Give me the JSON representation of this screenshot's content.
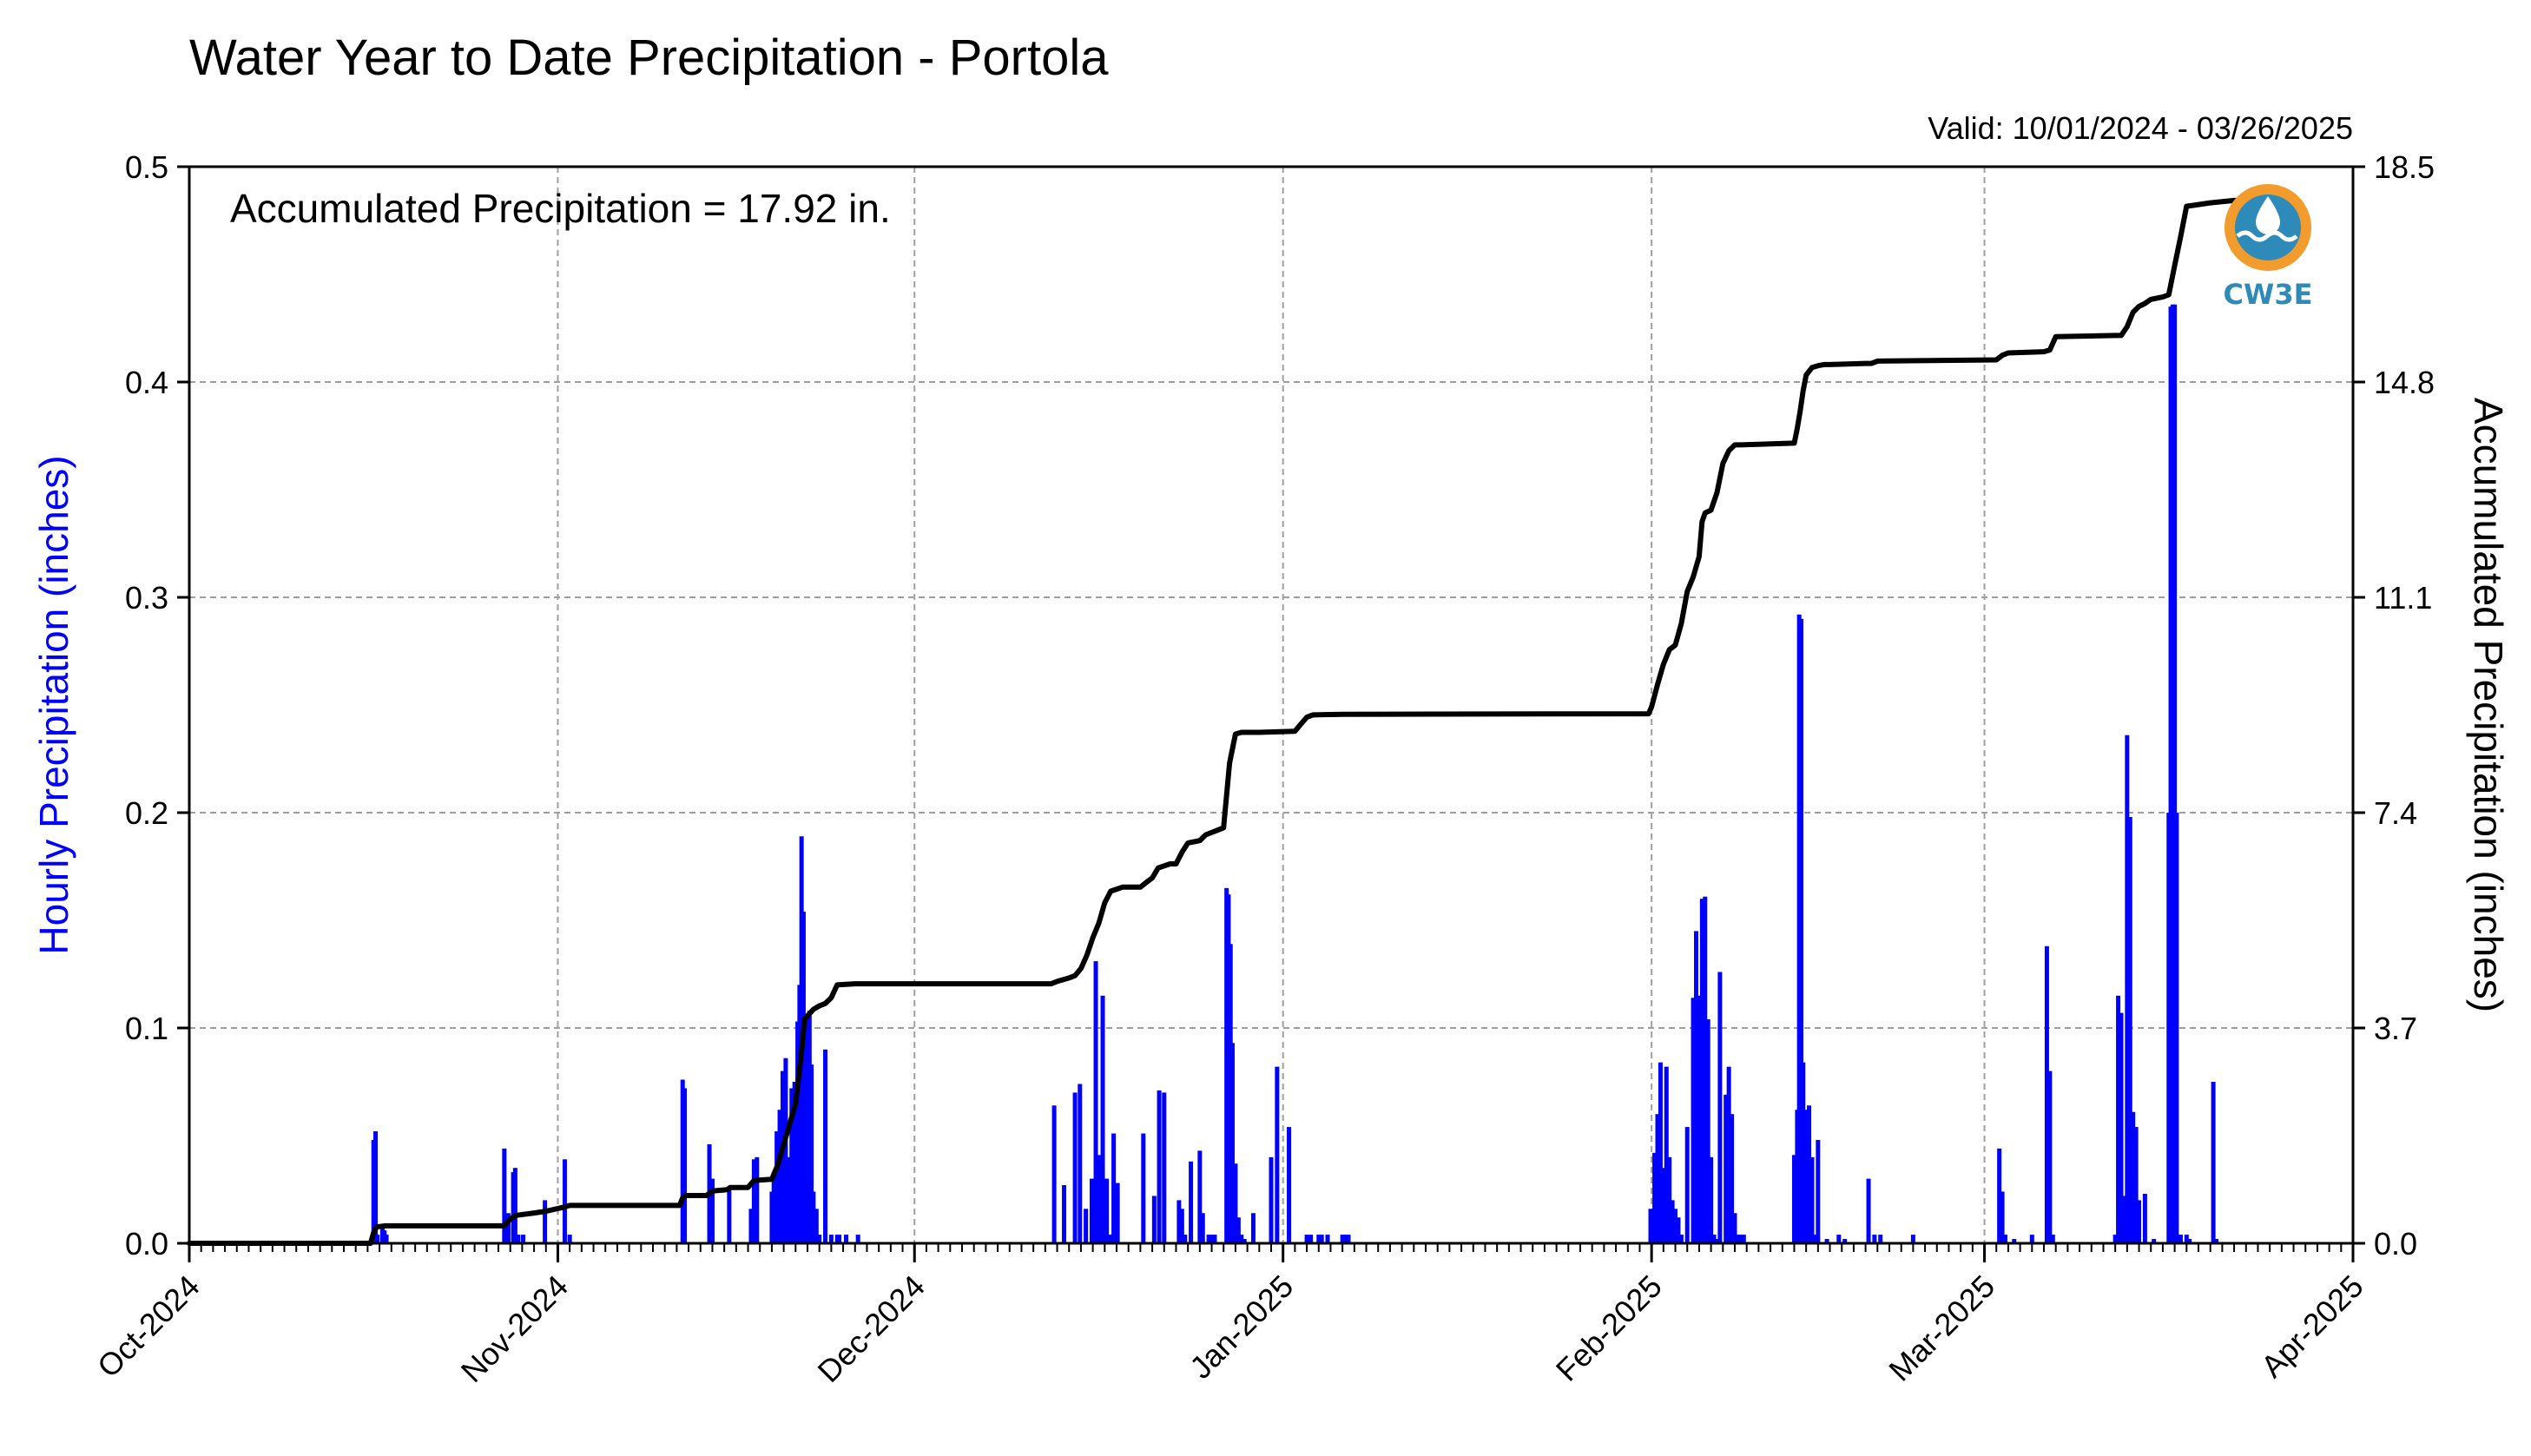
{
  "chart_data": {
    "type": "bar+line",
    "title": "Water Year to Date Precipitation - Portola",
    "valid_label": "Valid: 10/01/2024 - 03/26/2025",
    "annotation": "Accumulated Precipitation = 17.92 in.",
    "ylabel_left": "Hourly Precipitation (inches)",
    "ylabel_right": "Accumulated Precipitation (inches)",
    "ylim_left": [
      0,
      0.5
    ],
    "ylim_right": [
      0,
      18.5
    ],
    "yticks_left": [
      "0.0",
      "0.1",
      "0.2",
      "0.3",
      "0.4",
      "0.5"
    ],
    "yticks_right": [
      "0.0",
      "3.7",
      "7.4",
      "11.1",
      "14.8",
      "18.5"
    ],
    "xlim": [
      "2024-10-01",
      "2025-04-01"
    ],
    "xticks": [
      {
        "date": "2024-10-01",
        "label": "Oct-2024"
      },
      {
        "date": "2024-11-01",
        "label": "Nov-2024"
      },
      {
        "date": "2024-12-01",
        "label": "Dec-2024"
      },
      {
        "date": "2025-01-01",
        "label": "Jan-2025"
      },
      {
        "date": "2025-02-01",
        "label": "Feb-2025"
      },
      {
        "date": "2025-03-01",
        "label": "Mar-2025"
      },
      {
        "date": "2025-04-01",
        "label": "Apr-2025"
      }
    ],
    "grid": true,
    "colors": {
      "hourly": "#0000ff",
      "accumulated": "#000000",
      "left_axis_label": "#0000ff",
      "logo_orange": "#f39c2e",
      "logo_blue": "#2e8ab8"
    },
    "hourly_series": {
      "name": "Hourly Precipitation",
      "x": [
        "2024-10-16T12:00",
        "2024-10-16T16:00",
        "2024-10-16T20:00",
        "2024-10-17T06:00",
        "2024-10-17T10:00",
        "2024-10-17T14:00",
        "2024-10-27T12:00",
        "2024-10-27T20:00",
        "2024-10-28T06:00",
        "2024-10-28T10:00",
        "2024-10-28T16:00",
        "2024-10-29T02:00",
        "2024-10-30T22:00",
        "2024-11-01T14:00",
        "2024-11-02T00:00",
        "2024-11-11T12:00",
        "2024-11-11T16:00",
        "2024-11-13T18:00",
        "2024-11-14T00:00",
        "2024-11-15T10:00",
        "2024-11-17T06:00",
        "2024-11-17T12:00",
        "2024-11-17T18:00",
        "2024-11-19T00:00",
        "2024-11-19T04:00",
        "2024-11-19T10:00",
        "2024-11-19T16:00",
        "2024-11-19T22:00",
        "2024-11-20T04:00",
        "2024-11-20T10:00",
        "2024-11-20T16:00",
        "2024-11-20T22:00",
        "2024-11-21T04:00",
        "2024-11-21T08:00",
        "2024-11-21T12:00",
        "2024-11-21T16:00",
        "2024-11-21T20:00",
        "2024-11-22T00:00",
        "2024-11-22T04:00",
        "2024-11-22T08:00",
        "2024-11-22T12:00",
        "2024-11-22T18:00",
        "2024-11-23T00:00",
        "2024-11-23T12:00",
        "2024-11-24T00:00",
        "2024-11-24T12:00",
        "2024-11-24T16:00",
        "2024-11-25T06:00",
        "2024-11-26T06:00",
        "2024-12-12T18:00",
        "2024-12-13T14:00",
        "2024-12-14T12:00",
        "2024-12-14T22:00",
        "2024-12-15T10:00",
        "2024-12-15T22:00",
        "2024-12-16T06:00",
        "2024-12-16T12:00",
        "2024-12-16T16:00",
        "2024-12-16T20:00",
        "2024-12-17T04:00",
        "2024-12-17T10:00",
        "2024-12-17T18:00",
        "2024-12-18T02:00",
        "2024-12-20T06:00",
        "2024-12-21T04:00",
        "2024-12-21T14:00",
        "2024-12-22T00:00",
        "2024-12-23T06:00",
        "2024-12-23T12:00",
        "2024-12-23T18:00",
        "2024-12-24T06:00",
        "2024-12-25T00:00",
        "2024-12-25T06:00",
        "2024-12-25T18:00",
        "2024-12-26T00:00",
        "2024-12-26T06:00",
        "2024-12-27T06:00",
        "2024-12-27T10:00",
        "2024-12-27T14:00",
        "2024-12-27T18:00",
        "2024-12-28T00:00",
        "2024-12-28T06:00",
        "2024-12-28T12:00",
        "2024-12-28T18:00",
        "2024-12-29T12:00",
        "2024-12-31T00:00",
        "2024-12-31T12:00",
        "2025-01-01T12:00",
        "2025-01-03T00:00",
        "2025-01-03T08:00",
        "2025-01-04T00:00",
        "2025-01-04T06:00",
        "2025-01-04T18:00",
        "2025-01-06T00:00",
        "2025-01-06T06:00",
        "2025-01-06T12:00",
        "2025-01-31T22:00",
        "2025-02-01T06:00",
        "2025-02-01T12:00",
        "2025-02-01T18:00",
        "2025-02-02T00:00",
        "2025-02-02T06:00",
        "2025-02-02T12:00",
        "2025-02-02T18:00",
        "2025-02-03T00:00",
        "2025-02-03T06:00",
        "2025-02-03T12:00",
        "2025-02-04T00:00",
        "2025-02-04T12:00",
        "2025-02-04T18:00",
        "2025-02-05T00:00",
        "2025-02-05T06:00",
        "2025-02-05T12:00",
        "2025-02-05T18:00",
        "2025-02-06T00:00",
        "2025-02-06T06:00",
        "2025-02-06T12:00",
        "2025-02-06T18:00",
        "2025-02-07T06:00",
        "2025-02-07T12:00",
        "2025-02-07T18:00",
        "2025-02-08T00:00",
        "2025-02-08T06:00",
        "2025-02-08T12:00",
        "2025-02-08T18:00",
        "2025-02-13T00:00",
        "2025-02-13T06:00",
        "2025-02-13T10:00",
        "2025-02-13T14:00",
        "2025-02-13T18:00",
        "2025-02-13T22:00",
        "2025-02-14T02:00",
        "2025-02-14T06:00",
        "2025-02-14T12:00",
        "2025-02-14T18:00",
        "2025-02-15T00:00",
        "2025-02-15T18:00",
        "2025-02-16T18:00",
        "2025-02-17T06:00",
        "2025-02-19T06:00",
        "2025-02-19T18:00",
        "2025-02-20T06:00",
        "2025-02-23T00:00",
        "2025-03-02T06:00",
        "2025-03-02T12:00",
        "2025-03-02T18:00",
        "2025-03-03T12:00",
        "2025-03-05T00:00",
        "2025-03-06T06:00",
        "2025-03-06T12:00",
        "2025-03-06T18:00",
        "2025-03-12T00:00",
        "2025-03-12T06:00",
        "2025-03-12T12:00",
        "2025-03-12T18:00",
        "2025-03-13T00:00",
        "2025-03-13T06:00",
        "2025-03-13T12:00",
        "2025-03-13T18:00",
        "2025-03-14T00:00",
        "2025-03-14T12:00",
        "2025-03-15T06:00",
        "2025-03-16T12:00",
        "2025-03-16T16:00",
        "2025-03-16T20:00",
        "2025-03-17T00:00",
        "2025-03-17T04:00",
        "2025-03-17T12:00",
        "2025-03-18T00:00",
        "2025-03-18T06:00",
        "2025-03-20T06:00",
        "2025-03-20T12:00"
      ],
      "values": [
        0.048,
        0.052,
        0.004,
        0.008,
        0.006,
        0.004,
        0.044,
        0.014,
        0.033,
        0.035,
        0.004,
        0.004,
        0.02,
        0.039,
        0.004,
        0.076,
        0.072,
        0.046,
        0.03,
        0.026,
        0.016,
        0.039,
        0.04,
        0.024,
        0.033,
        0.052,
        0.062,
        0.08,
        0.086,
        0.04,
        0.072,
        0.075,
        0.103,
        0.12,
        0.189,
        0.154,
        0.106,
        0.101,
        0.108,
        0.083,
        0.024,
        0.016,
        0.004,
        0.09,
        0.004,
        0.004,
        0.004,
        0.004,
        0.004,
        0.064,
        0.027,
        0.07,
        0.074,
        0.016,
        0.03,
        0.131,
        0.041,
        0.018,
        0.115,
        0.03,
        0.004,
        0.051,
        0.028,
        0.051,
        0.022,
        0.071,
        0.07,
        0.02,
        0.016,
        0.004,
        0.038,
        0.043,
        0.014,
        0.004,
        0.004,
        0.004,
        0.165,
        0.162,
        0.139,
        0.093,
        0.037,
        0.012,
        0.004,
        0.002,
        0.014,
        0.04,
        0.082,
        0.054,
        0.004,
        0.004,
        0.004,
        0.004,
        0.004,
        0.004,
        0.004,
        0.004,
        0.016,
        0.042,
        0.06,
        0.084,
        0.035,
        0.082,
        0.04,
        0.02,
        0.016,
        0.012,
        0.004,
        0.054,
        0.114,
        0.145,
        0.115,
        0.16,
        0.161,
        0.104,
        0.04,
        0.004,
        0.002,
        0.126,
        0.069,
        0.082,
        0.06,
        0.014,
        0.004,
        0.004,
        0.004,
        0.041,
        0.062,
        0.292,
        0.29,
        0.084,
        0.062,
        0.06,
        0.064,
        0.04,
        0.004,
        0.048,
        0.002,
        0.004,
        0.002,
        0.03,
        0.004,
        0.004,
        0.004,
        0.044,
        0.024,
        0.004,
        0.002,
        0.004,
        0.138,
        0.08,
        0.004,
        0.004,
        0.115,
        0.107,
        0.022,
        0.236,
        0.198,
        0.061,
        0.054,
        0.02,
        0.023,
        0.002,
        0.2,
        0.435,
        0.436,
        0.436,
        0.2,
        0.004,
        0.004,
        0.002,
        0.075,
        0.002
      ]
    },
    "accumulated_series": {
      "name": "Accumulated Precipitation",
      "x": [
        "2024-10-01",
        "2024-10-16T06:00",
        "2024-10-16T12:00",
        "2024-10-16T18:00",
        "2024-10-17T12:00",
        "2024-10-27T12:00",
        "2024-10-28T00:00",
        "2024-10-28T12:00",
        "2024-10-30T00:00",
        "2024-10-31T00:00",
        "2024-11-01T12:00",
        "2024-11-02T00:00",
        "2024-11-11T06:00",
        "2024-11-11T12:00",
        "2024-11-11T18:00",
        "2024-11-13T12:00",
        "2024-11-14T00:00",
        "2024-11-15T06:00",
        "2024-11-15T12:00",
        "2024-11-17T00:00",
        "2024-11-17T12:00",
        "2024-11-19T00:00",
        "2024-11-19T12:00",
        "2024-11-20T00:00",
        "2024-11-20T12:00",
        "2024-11-21T00:00",
        "2024-11-21T06:00",
        "2024-11-21T12:00",
        "2024-11-21T18:00",
        "2024-11-22T12:00",
        "2024-11-23T00:00",
        "2024-11-23T12:00",
        "2024-11-24T00:00",
        "2024-11-24T12:00",
        "2024-11-26T00:00",
        "2024-12-12T12:00",
        "2024-12-13T00:00",
        "2024-12-14T00:00",
        "2024-12-14T12:00",
        "2024-12-15T00:00",
        "2024-12-15T12:00",
        "2024-12-16T00:00",
        "2024-12-16T12:00",
        "2024-12-17T00:00",
        "2024-12-17T12:00",
        "2024-12-18T12:00",
        "2024-12-20T00:00",
        "2024-12-20T12:00",
        "2024-12-21T00:00",
        "2024-12-21T12:00",
        "2024-12-22T12:00",
        "2024-12-23T00:00",
        "2024-12-23T12:00",
        "2024-12-24T00:00",
        "2024-12-25T00:00",
        "2024-12-25T12:00",
        "2024-12-27T00:00",
        "2024-12-27T06:00",
        "2024-12-27T12:00",
        "2024-12-28T00:00",
        "2024-12-28T12:00",
        "2024-12-30T00:00",
        "2025-01-02T00:00",
        "2025-01-02T12:00",
        "2025-01-03T00:00",
        "2025-01-03T12:00",
        "2025-01-06T00:00",
        "2025-01-31T18:00",
        "2025-02-01T00:00",
        "2025-02-01T12:00",
        "2025-02-02T00:00",
        "2025-02-02T12:00",
        "2025-02-03T00:00",
        "2025-02-03T12:00",
        "2025-02-04T00:00",
        "2025-02-04T12:00",
        "2025-02-05T00:00",
        "2025-02-05T06:00",
        "2025-02-05T12:00",
        "2025-02-06T00:00",
        "2025-02-06T12:00",
        "2025-02-07T00:00",
        "2025-02-07T12:00",
        "2025-02-08T00:00",
        "2025-02-08T12:00",
        "2025-02-13T00:00",
        "2025-02-13T06:00",
        "2025-02-13T12:00",
        "2025-02-13T18:00",
        "2025-02-14T00:00",
        "2025-02-14T12:00",
        "2025-02-15T00:00",
        "2025-02-15T12:00",
        "2025-02-16T00:00",
        "2025-02-19T00:00",
        "2025-02-19T12:00",
        "2025-02-20T00:00",
        "2025-03-02T00:00",
        "2025-03-02T12:00",
        "2025-03-03T00:00",
        "2025-03-06T00:00",
        "2025-03-06T12:00",
        "2025-03-07T00:00",
        "2025-03-12T00:00",
        "2025-03-12T12:00",
        "2025-03-13T00:00",
        "2025-03-13T12:00",
        "2025-03-14T00:00",
        "2025-03-14T12:00",
        "2025-03-15T00:00",
        "2025-03-16T00:00",
        "2025-03-16T12:00",
        "2025-03-17T00:00",
        "2025-03-17T12:00",
        "2025-03-18T00:00",
        "2025-03-20T00:00",
        "2025-03-22T00:00",
        "2025-03-26T12:00"
      ],
      "values": [
        0.0,
        0.0,
        0.18,
        0.28,
        0.3,
        0.3,
        0.42,
        0.48,
        0.52,
        0.55,
        0.62,
        0.65,
        0.65,
        0.78,
        0.82,
        0.82,
        0.9,
        0.92,
        0.96,
        0.96,
        1.08,
        1.1,
        1.35,
        1.7,
        2.05,
        2.4,
        2.85,
        3.3,
        3.85,
        4.02,
        4.08,
        4.12,
        4.22,
        4.44,
        4.46,
        4.46,
        4.5,
        4.56,
        4.6,
        4.72,
        4.95,
        5.25,
        5.5,
        5.85,
        6.05,
        6.12,
        6.12,
        6.2,
        6.28,
        6.45,
        6.52,
        6.52,
        6.72,
        6.88,
        6.92,
        7.02,
        7.14,
        7.7,
        8.25,
        8.75,
        8.78,
        8.78,
        8.8,
        8.92,
        9.04,
        9.08,
        9.09,
        9.1,
        9.22,
        9.6,
        9.95,
        10.2,
        10.28,
        10.65,
        11.2,
        11.45,
        11.8,
        12.4,
        12.55,
        12.6,
        12.9,
        13.4,
        13.62,
        13.72,
        13.72,
        13.75,
        14.0,
        14.3,
        14.65,
        14.92,
        15.05,
        15.08,
        15.1,
        15.1,
        15.12,
        15.12,
        15.16,
        15.18,
        15.26,
        15.3,
        15.32,
        15.35,
        15.58,
        15.6,
        15.6,
        15.75,
        16.0,
        16.1,
        16.15,
        16.22,
        16.26,
        16.3,
        16.8,
        17.3,
        17.82,
        17.88,
        17.92,
        17.92
      ]
    }
  },
  "logo": {
    "text": "CW3E"
  }
}
